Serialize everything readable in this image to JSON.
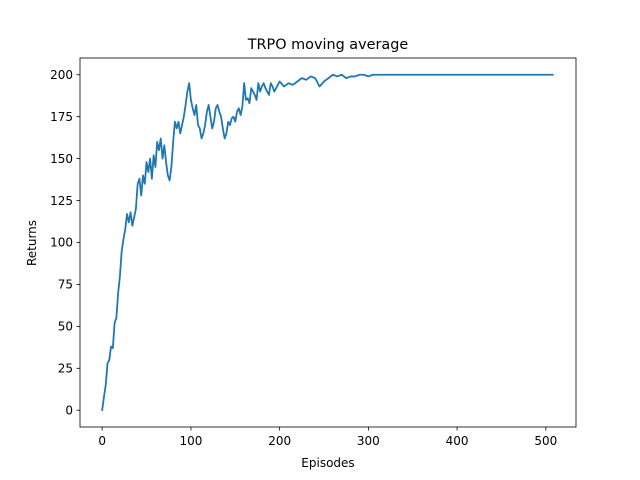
{
  "chart_data": {
    "type": "line",
    "title": "TRPO moving average",
    "xlabel": "Episodes",
    "ylabel": "Returns",
    "xlim": [
      -25,
      534
    ],
    "ylim": [
      -10,
      210
    ],
    "xticks": [
      0,
      100,
      200,
      300,
      400,
      500
    ],
    "yticks": [
      0,
      25,
      50,
      75,
      100,
      125,
      150,
      175,
      200
    ],
    "grid": false,
    "line_color": "#1f77b4",
    "series": [
      {
        "x": [
          0,
          2,
          4,
          6,
          8,
          10,
          12,
          14,
          16,
          18,
          20,
          22,
          24,
          26,
          28,
          30,
          32,
          34,
          36,
          38,
          40,
          42,
          44,
          46,
          48,
          50,
          52,
          54,
          56,
          58,
          60,
          62,
          64,
          66,
          68,
          70,
          72,
          74,
          76,
          78,
          80,
          82,
          84,
          86,
          88,
          90,
          92,
          94,
          96,
          98,
          100,
          102,
          104,
          106,
          108,
          110,
          112,
          114,
          116,
          118,
          120,
          122,
          124,
          126,
          128,
          130,
          132,
          134,
          136,
          138,
          140,
          142,
          144,
          146,
          148,
          150,
          152,
          154,
          156,
          158,
          160,
          162,
          164,
          166,
          168,
          170,
          172,
          174,
          176,
          178,
          180,
          182,
          184,
          186,
          188,
          190,
          192,
          194,
          196,
          198,
          200,
          205,
          210,
          215,
          220,
          225,
          230,
          235,
          240,
          245,
          250,
          255,
          260,
          265,
          270,
          275,
          280,
          285,
          290,
          295,
          300,
          305,
          310,
          315,
          320,
          325,
          330,
          335,
          340,
          345,
          350,
          355,
          360,
          365,
          370,
          375,
          380,
          385,
          390,
          395,
          400,
          410,
          420,
          430,
          440,
          450,
          460,
          470,
          480,
          490,
          500,
          508
        ],
        "y": [
          0,
          8,
          15,
          28,
          30,
          38,
          37,
          52,
          55,
          70,
          80,
          95,
          102,
          108,
          117,
          112,
          118,
          110,
          115,
          120,
          135,
          138,
          128,
          140,
          135,
          148,
          142,
          150,
          138,
          152,
          145,
          160,
          155,
          162,
          150,
          158,
          148,
          140,
          137,
          145,
          160,
          172,
          168,
          172,
          165,
          170,
          175,
          182,
          190,
          195,
          185,
          180,
          176,
          182,
          170,
          168,
          162,
          165,
          170,
          178,
          182,
          175,
          168,
          172,
          180,
          182,
          178,
          175,
          168,
          162,
          165,
          172,
          170,
          174,
          175,
          172,
          178,
          180,
          176,
          181,
          195,
          185,
          186,
          183,
          192,
          190,
          188,
          185,
          195,
          190,
          193,
          195,
          192,
          190,
          188,
          195,
          193,
          190,
          192,
          194,
          196,
          193,
          195,
          194,
          196,
          198,
          197,
          199,
          198,
          193,
          196,
          198,
          200,
          199,
          200,
          198,
          199,
          199,
          200,
          200,
          199,
          200,
          200,
          200,
          200,
          200,
          200,
          200,
          200,
          200,
          200,
          200,
          200,
          200,
          200,
          200,
          200,
          200,
          200,
          200,
          200,
          200,
          200,
          200,
          200,
          200,
          200,
          200,
          200,
          200,
          200,
          200
        ]
      }
    ]
  }
}
